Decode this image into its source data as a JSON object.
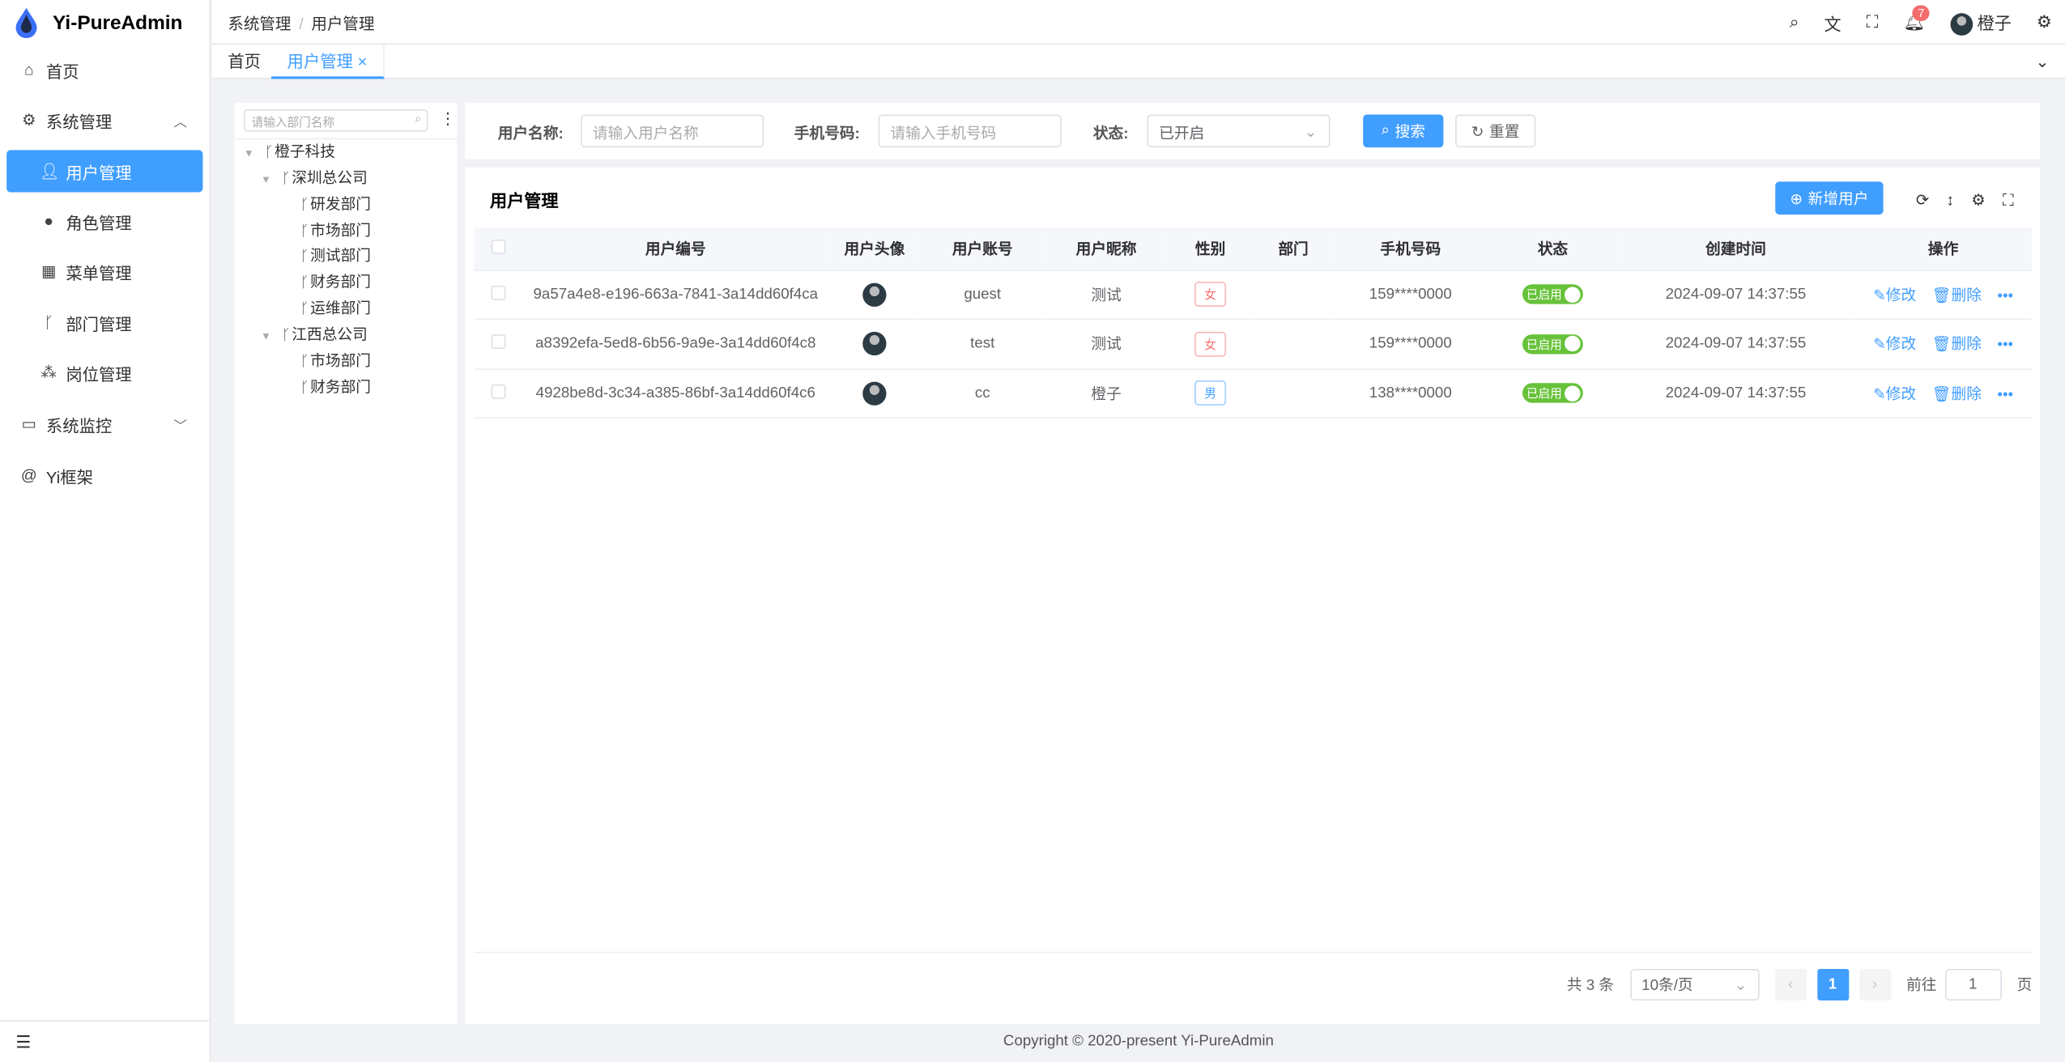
{
  "app": {
    "title": "Yi-PureAdmin",
    "footer": "Copyright © 2020-present Yi-PureAdmin"
  },
  "sidebar": {
    "items": [
      {
        "label": "首页",
        "icon": "home-icon"
      },
      {
        "label": "系统管理",
        "icon": "gear-icon"
      },
      {
        "label": "用户管理",
        "icon": "user-icon",
        "active": true
      },
      {
        "label": "角色管理",
        "icon": "role-icon"
      },
      {
        "label": "菜单管理",
        "icon": "menu-grid-icon"
      },
      {
        "label": "部门管理",
        "icon": "branch-icon"
      },
      {
        "label": "岗位管理",
        "icon": "post-icon"
      },
      {
        "label": "系统监控",
        "icon": "monitor-icon"
      },
      {
        "label": "Yi框架",
        "icon": "at-icon"
      }
    ]
  },
  "header": {
    "breadcrumb": [
      "系统管理",
      "用户管理"
    ],
    "user": "橙子",
    "notifications": "7"
  },
  "tabs": [
    {
      "label": "首页"
    },
    {
      "label": "用户管理",
      "active": true
    }
  ],
  "tree": {
    "placeholder": "请输入部门名称",
    "nodes": [
      "橙子科技",
      "深圳总公司",
      "研发部门",
      "市场部门",
      "测试部门",
      "财务部门",
      "运维部门",
      "江西总公司",
      "市场部门",
      "财务部门"
    ]
  },
  "search": {
    "name_label": "用户名称:",
    "name_placeholder": "请输入用户名称",
    "phone_label": "手机号码:",
    "phone_placeholder": "请输入手机号码",
    "status_label": "状态:",
    "status_value": "已开启",
    "search_btn": "搜索",
    "reset_btn": "重置"
  },
  "table": {
    "title": "用户管理",
    "add_btn": "新增用户",
    "columns": [
      "用户编号",
      "用户头像",
      "用户账号",
      "用户昵称",
      "性别",
      "部门",
      "手机号码",
      "状态",
      "创建时间",
      "操作"
    ],
    "rows": [
      {
        "id": "9a57a4e8-e196-663a-7841-3a14dd60f4ca",
        "account": "guest",
        "nick": "测试",
        "gender": "女",
        "dept": "",
        "phone": "159****0000",
        "status": "已启用",
        "created": "2024-09-07 14:37:55"
      },
      {
        "id": "a8392efa-5ed8-6b56-9a9e-3a14dd60f4c8",
        "account": "test",
        "nick": "测试",
        "gender": "女",
        "dept": "",
        "phone": "159****0000",
        "status": "已启用",
        "created": "2024-09-07 14:37:55"
      },
      {
        "id": "4928be8d-3c34-a385-86bf-3a14dd60f4c6",
        "account": "cc",
        "nick": "橙子",
        "gender": "男",
        "dept": "",
        "phone": "138****0000",
        "status": "已启用",
        "created": "2024-09-07 14:37:55"
      }
    ],
    "edit": "修改",
    "delete": "删除"
  },
  "pagination": {
    "total": "共 3 条",
    "size": "10条/页",
    "page": "1",
    "goto": "前往",
    "goto_value": "1",
    "page_suffix": "页"
  },
  "colors": {
    "primary": "#409eff",
    "success": "#67c23a",
    "danger": "#f56c6c"
  }
}
